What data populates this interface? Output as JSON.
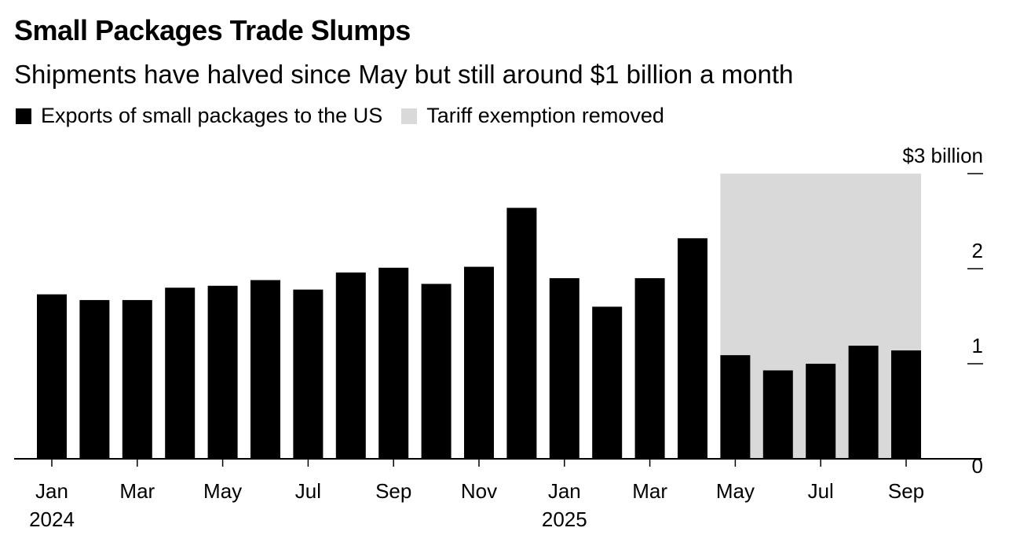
{
  "chart_data": {
    "type": "bar",
    "title": "Small Packages Trade Slumps",
    "subtitle": "Shipments have halved since May but still around $1 billion a month",
    "legend": [
      {
        "label": "Exports of small packages to the US",
        "color": "#000000"
      },
      {
        "label": "Tariff exemption removed",
        "color": "#d9d9d9"
      }
    ],
    "categories": [
      "2024-01",
      "2024-02",
      "2024-03",
      "2024-04",
      "2024-05",
      "2024-06",
      "2024-07",
      "2024-08",
      "2024-09",
      "2024-10",
      "2024-11",
      "2024-12",
      "2025-01",
      "2025-02",
      "2025-03",
      "2025-04",
      "2025-05",
      "2025-06",
      "2025-07",
      "2025-08",
      "2025-09"
    ],
    "series": [
      {
        "name": "Exports of small packages to the US",
        "values": [
          1.73,
          1.67,
          1.67,
          1.8,
          1.82,
          1.88,
          1.78,
          1.96,
          2.01,
          1.84,
          2.02,
          2.64,
          1.9,
          1.6,
          1.9,
          2.32,
          1.09,
          0.93,
          1.0,
          1.19,
          1.14
        ]
      }
    ],
    "shaded_range": {
      "from": "2025-05",
      "to": "2025-09",
      "label": "Tariff exemption removed"
    },
    "x_tick_labels": [
      {
        "at": "2024-01",
        "label": "Jan",
        "year": "2024"
      },
      {
        "at": "2024-03",
        "label": "Mar"
      },
      {
        "at": "2024-05",
        "label": "May"
      },
      {
        "at": "2024-07",
        "label": "Jul"
      },
      {
        "at": "2024-09",
        "label": "Sep"
      },
      {
        "at": "2024-11",
        "label": "Nov"
      },
      {
        "at": "2025-01",
        "label": "Jan",
        "year": "2025"
      },
      {
        "at": "2025-03",
        "label": "Mar"
      },
      {
        "at": "2025-05",
        "label": "May"
      },
      {
        "at": "2025-07",
        "label": "Jul"
      },
      {
        "at": "2025-09",
        "label": "Sep"
      }
    ],
    "y_ticks": [
      {
        "v": 0,
        "label": "0"
      },
      {
        "v": 1,
        "label": "1"
      },
      {
        "v": 2,
        "label": "2"
      },
      {
        "v": 3,
        "label": "$3 billion"
      }
    ],
    "ylim": [
      0,
      3
    ],
    "grid": false,
    "legend_position": "top-left",
    "colors": {
      "bar": "#000000",
      "shade": "#d9d9d9"
    }
  }
}
